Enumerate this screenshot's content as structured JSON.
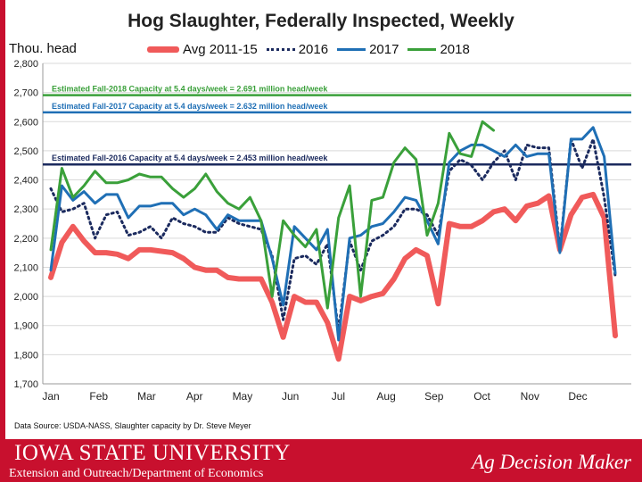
{
  "chart_data": {
    "type": "line",
    "title": "Hog Slaughter, Federally Inspected, Weekly",
    "ylabel": "Thou. head",
    "xlabel": "",
    "ylim": [
      1700,
      2800
    ],
    "yticks": [
      "1,700",
      "1,800",
      "1,900",
      "2,000",
      "2,100",
      "2,200",
      "2,300",
      "2,400",
      "2,500",
      "2,600",
      "2,700",
      "2,800"
    ],
    "month_labels": [
      "Jan",
      "Feb",
      "Mar",
      "Apr",
      "May",
      "Jun",
      "Jul",
      "Aug",
      "Sep",
      "Oct",
      "Nov",
      "Dec"
    ],
    "weeks": 52,
    "grid": true,
    "legend_position": "top",
    "series": [
      {
        "name": "Avg 2011-15",
        "color": "#f05a5a",
        "style": "solid",
        "width": 6,
        "values": [
          2065,
          2185,
          2240,
          2190,
          2150,
          2150,
          2145,
          2130,
          2160,
          2160,
          2155,
          2150,
          2130,
          2100,
          2090,
          2090,
          2065,
          2060,
          2060,
          2060,
          1980,
          1860,
          2000,
          1980,
          1980,
          1910,
          1785,
          2000,
          1985,
          2000,
          2010,
          2060,
          2130,
          2160,
          2140,
          1975,
          2250,
          2240,
          2240,
          2260,
          2290,
          2300,
          2260,
          2310,
          2320,
          2345,
          2160,
          2280,
          2340,
          2350,
          2270,
          1865
        ]
      },
      {
        "name": "2016",
        "color": "#1b2a5e",
        "style": "dotted",
        "width": 3,
        "values": [
          2370,
          2290,
          2300,
          2320,
          2200,
          2280,
          2290,
          2210,
          2220,
          2240,
          2200,
          2270,
          2250,
          2240,
          2220,
          2220,
          2270,
          2250,
          2240,
          2230,
          2140,
          1920,
          2130,
          2140,
          2110,
          2180,
          1880,
          2190,
          2090,
          2190,
          2210,
          2240,
          2300,
          2300,
          2280,
          2210,
          2430,
          2470,
          2450,
          2400,
          2460,
          2500,
          2400,
          2520,
          2510,
          2510,
          2160,
          2540,
          2440,
          2540,
          2340,
          2070
        ]
      },
      {
        "name": "2017",
        "color": "#1f6fb5",
        "style": "solid",
        "width": 3,
        "values": [
          2090,
          2380,
          2330,
          2360,
          2320,
          2350,
          2350,
          2270,
          2310,
          2310,
          2320,
          2320,
          2280,
          2300,
          2280,
          2230,
          2280,
          2260,
          2260,
          2260,
          2130,
          1970,
          2240,
          2200,
          2160,
          2230,
          1850,
          2200,
          2210,
          2240,
          2250,
          2290,
          2340,
          2330,
          2260,
          2180,
          2460,
          2500,
          2520,
          2520,
          2500,
          2480,
          2520,
          2480,
          2490,
          2490,
          2150,
          2540,
          2540,
          2580,
          2480,
          2080
        ]
      },
      {
        "name": "2018",
        "color": "#3aa03a",
        "style": "solid",
        "width": 3,
        "values": [
          2160,
          2440,
          2340,
          2380,
          2430,
          2390,
          2390,
          2400,
          2420,
          2410,
          2410,
          2370,
          2340,
          2370,
          2420,
          2360,
          2320,
          2300,
          2340,
          2260,
          2000,
          2260,
          2210,
          2170,
          2230,
          1960,
          2270,
          2380,
          2000,
          2330,
          2340,
          2460,
          2510,
          2470,
          2210,
          2320,
          2560,
          2490,
          2480,
          2600,
          2570
        ]
      }
    ],
    "reference_lines": [
      {
        "label": "Estimated Fall-2018 Capacity at 5.4 days/week = 2.691 million head/week",
        "value": 2691,
        "color": "#3aa03a"
      },
      {
        "label": "Estimated Fall-2017 Capacity at 5.4 days/week = 2.632 million head/week",
        "value": 2632,
        "color": "#1f6fb5"
      },
      {
        "label": "Estimated Fall-2016 Capacity at 5.4 days/week = 2.453 million head/week",
        "value": 2453,
        "color": "#1b2a5e"
      }
    ]
  },
  "source": "Data Source:  USDA-NASS, Slaughter capacity by Dr. Steve Meyer",
  "footer": {
    "university": "IOWA STATE UNIVERSITY",
    "department": "Extension and Outreach/Department of Economics",
    "brand": "Ag Decision Maker",
    "color": "#c8102e"
  }
}
